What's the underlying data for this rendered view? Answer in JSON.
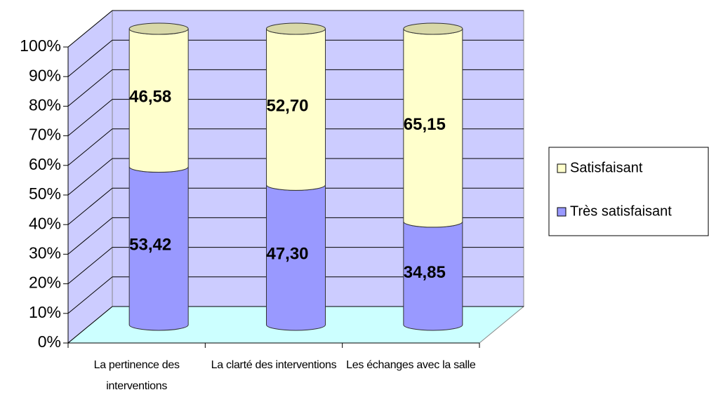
{
  "chart_data": {
    "type": "bar3d-stacked-cylinder",
    "categories": [
      "La pertinence des interventions",
      "La clarté des interventions",
      "Les échanges avec la salle"
    ],
    "series": [
      {
        "name": "Très satisfaisant",
        "color": "#9999ff",
        "values": [
          53.42,
          47.3,
          34.85
        ],
        "value_labels": [
          "53,42",
          "47,30",
          "34,85"
        ]
      },
      {
        "name": "Satisfaisant",
        "color": "#ffffcc",
        "values": [
          46.58,
          52.7,
          65.15
        ],
        "value_labels": [
          "46,58",
          "52,70",
          "65,15"
        ]
      }
    ],
    "ylim": [
      0,
      100
    ],
    "yticks": [
      {
        "value": 0,
        "label": "0%"
      },
      {
        "value": 10,
        "label": "10%"
      },
      {
        "value": 20,
        "label": "20%"
      },
      {
        "value": 30,
        "label": "30%"
      },
      {
        "value": 40,
        "label": "40%"
      },
      {
        "value": 50,
        "label": "50%"
      },
      {
        "value": 60,
        "label": "60%"
      },
      {
        "value": 70,
        "label": "70%"
      },
      {
        "value": 80,
        "label": "80%"
      },
      {
        "value": 90,
        "label": "90%"
      },
      {
        "value": 100,
        "label": "100%"
      }
    ],
    "grid": true,
    "legend": "right"
  }
}
